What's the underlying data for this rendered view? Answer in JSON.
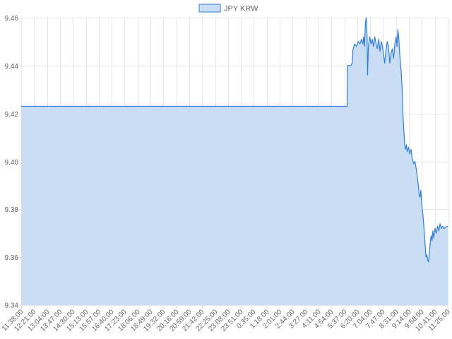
{
  "chart_data": {
    "type": "area",
    "series": [
      {
        "name": "JPY KRW",
        "stroke": "#2f7ed8",
        "fill": "#c9def4",
        "points": [
          [
            0,
            9.423
          ],
          [
            0.764,
            9.423
          ],
          [
            0.765,
            9.44
          ],
          [
            0.773,
            9.44
          ],
          [
            0.776,
            9.441
          ],
          [
            0.778,
            9.447
          ],
          [
            0.782,
            9.449
          ],
          [
            0.786,
            9.448
          ],
          [
            0.79,
            9.45
          ],
          [
            0.794,
            9.449
          ],
          [
            0.798,
            9.451
          ],
          [
            0.801,
            9.449
          ],
          [
            0.803,
            9.452
          ],
          [
            0.805,
            9.448
          ],
          [
            0.807,
            9.458
          ],
          [
            0.809,
            9.46
          ],
          [
            0.811,
            9.452
          ],
          [
            0.812,
            9.436
          ],
          [
            0.814,
            9.448
          ],
          [
            0.817,
            9.452
          ],
          [
            0.82,
            9.449
          ],
          [
            0.823,
            9.451
          ],
          [
            0.826,
            9.448
          ],
          [
            0.829,
            9.452
          ],
          [
            0.832,
            9.449
          ],
          [
            0.835,
            9.447
          ],
          [
            0.838,
            9.451
          ],
          [
            0.841,
            9.446
          ],
          [
            0.844,
            9.45
          ],
          [
            0.847,
            9.448
          ],
          [
            0.85,
            9.444
          ],
          [
            0.852,
            9.441
          ],
          [
            0.855,
            9.446
          ],
          [
            0.858,
            9.45
          ],
          [
            0.861,
            9.448
          ],
          [
            0.864,
            9.441
          ],
          [
            0.867,
            9.445
          ],
          [
            0.87,
            9.447
          ],
          [
            0.873,
            9.443
          ],
          [
            0.876,
            9.449
          ],
          [
            0.879,
            9.452
          ],
          [
            0.881,
            9.448
          ],
          [
            0.883,
            9.455
          ],
          [
            0.885,
            9.452
          ],
          [
            0.887,
            9.446
          ],
          [
            0.889,
            9.441
          ],
          [
            0.891,
            9.437
          ],
          [
            0.893,
            9.43
          ],
          [
            0.895,
            9.419
          ],
          [
            0.897,
            9.413
          ],
          [
            0.899,
            9.407
          ],
          [
            0.901,
            9.405
          ],
          [
            0.903,
            9.407
          ],
          [
            0.905,
            9.404
          ],
          [
            0.908,
            9.406
          ],
          [
            0.911,
            9.403
          ],
          [
            0.914,
            9.405
          ],
          [
            0.917,
            9.401
          ],
          [
            0.92,
            9.399
          ],
          [
            0.923,
            9.4
          ],
          [
            0.926,
            9.397
          ],
          [
            0.929,
            9.393
          ],
          [
            0.931,
            9.39
          ],
          [
            0.933,
            9.386
          ],
          [
            0.935,
            9.385
          ],
          [
            0.937,
            9.388
          ],
          [
            0.939,
            9.382
          ],
          [
            0.941,
            9.379
          ],
          [
            0.943,
            9.375
          ],
          [
            0.945,
            9.37
          ],
          [
            0.947,
            9.365
          ],
          [
            0.949,
            9.36
          ],
          [
            0.951,
            9.361
          ],
          [
            0.953,
            9.359
          ],
          [
            0.955,
            9.358
          ],
          [
            0.957,
            9.362
          ],
          [
            0.959,
            9.366
          ],
          [
            0.961,
            9.369
          ],
          [
            0.963,
            9.367
          ],
          [
            0.965,
            9.371
          ],
          [
            0.967,
            9.368
          ],
          [
            0.97,
            9.372
          ],
          [
            0.973,
            9.37
          ],
          [
            0.976,
            9.373
          ],
          [
            0.979,
            9.371
          ],
          [
            0.982,
            9.374
          ],
          [
            0.985,
            9.372
          ],
          [
            0.988,
            9.373
          ],
          [
            0.991,
            9.372
          ],
          [
            1.0,
            9.373
          ]
        ]
      }
    ],
    "x_tick_labels": [
      "11:38:00",
      "12:21:00",
      "13:04:00",
      "13:47:00",
      "14:30:00",
      "15:13:00",
      "15:57:00",
      "16:40:00",
      "17:23:00",
      "18:06:00",
      "18:49:00",
      "19:32:00",
      "20:16:00",
      "20:59:00",
      "21:42:00",
      "22:25:00",
      "23:08:00",
      "23:51:00",
      "0:35:00",
      "1:18:00",
      "2:01:00",
      "2:44:00",
      "3:27:00",
      "4:11:00",
      "4:54:00",
      "5:37:00",
      "6:20:00",
      "7:04:00",
      "7:47:00",
      "8:31:00",
      "9:14:00",
      "9:58:00",
      "10:41:00",
      "11:25:00"
    ],
    "y_ticks": [
      9.34,
      9.36,
      9.38,
      9.4,
      9.42,
      9.44,
      9.46
    ],
    "ylim": [
      9.34,
      9.46
    ],
    "xlabel": "",
    "ylabel": "",
    "title": "",
    "grid": true,
    "legend": "top-center"
  }
}
